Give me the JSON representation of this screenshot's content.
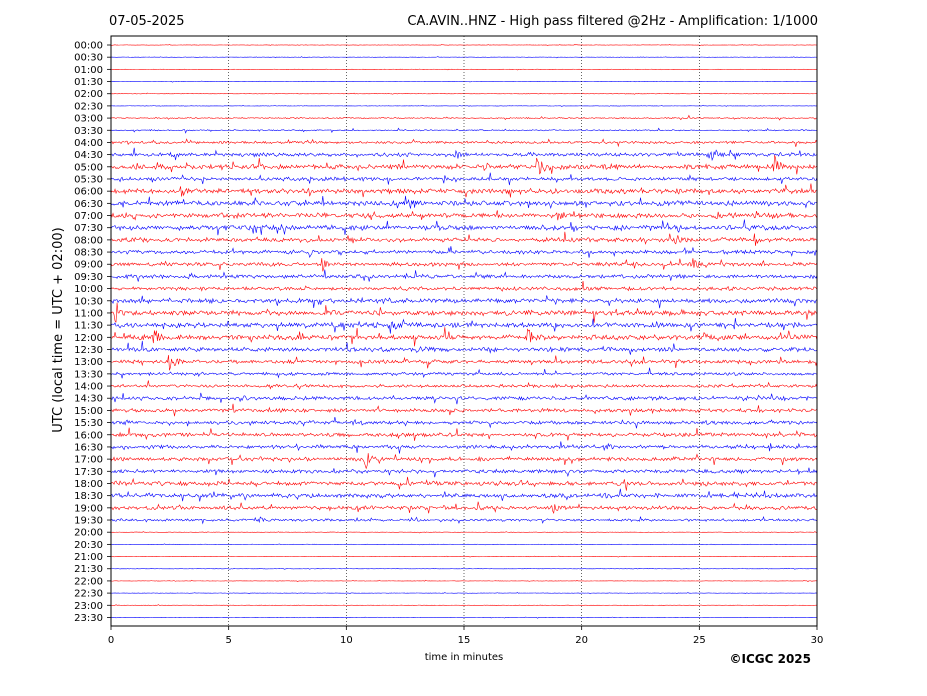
{
  "header": {
    "date": "07-05-2025",
    "title": "CA.AVIN..HNZ - High pass filtered @2Hz - Amplification: 1/1000"
  },
  "copyright": "©ICGC 2025",
  "colors": {
    "trace_a": "#ff0000",
    "trace_b": "#0000ff",
    "grid": "#000000"
  },
  "chart_data": {
    "type": "line",
    "xlabel": "time in minutes",
    "ylabel": "UTC (local time = UTC + 02:00)",
    "xlim": [
      0,
      30
    ],
    "x_ticks": [
      "0",
      "5",
      "10",
      "15",
      "20",
      "25",
      "30"
    ],
    "x_grid_minutes": [
      5,
      10,
      15,
      20,
      25
    ],
    "rows": [
      "00:00",
      "00:30",
      "01:00",
      "01:30",
      "02:00",
      "02:30",
      "03:00",
      "03:30",
      "04:00",
      "04:30",
      "05:00",
      "05:30",
      "06:00",
      "06:30",
      "07:00",
      "07:30",
      "08:00",
      "08:30",
      "09:00",
      "09:30",
      "10:00",
      "10:30",
      "11:00",
      "11:30",
      "12:00",
      "12:30",
      "13:00",
      "13:30",
      "14:00",
      "14:30",
      "15:00",
      "15:30",
      "16:00",
      "16:30",
      "17:00",
      "17:30",
      "18:00",
      "18:30",
      "19:00",
      "19:30",
      "20:00",
      "20:30",
      "21:00",
      "21:30",
      "22:00",
      "22:30",
      "23:00",
      "23:30"
    ],
    "noise_level": [
      0.03,
      0.03,
      0.03,
      0.03,
      0.03,
      0.03,
      0.1,
      0.1,
      0.2,
      0.3,
      0.4,
      0.3,
      0.4,
      0.4,
      0.4,
      0.4,
      0.35,
      0.3,
      0.3,
      0.3,
      0.3,
      0.35,
      0.4,
      0.4,
      0.4,
      0.35,
      0.3,
      0.25,
      0.25,
      0.3,
      0.3,
      0.3,
      0.3,
      0.3,
      0.3,
      0.3,
      0.35,
      0.35,
      0.3,
      0.2,
      0.04,
      0.03,
      0.03,
      0.03,
      0.03,
      0.03,
      0.03,
      0.03
    ],
    "events": [
      {
        "row": "04:30",
        "minute": 25.4,
        "amplitude": 2.5
      },
      {
        "row": "04:30",
        "minute": 14.6,
        "amplitude": 0.8
      },
      {
        "row": "05:00",
        "minute": 18.1,
        "amplitude": 1.8
      },
      {
        "row": "05:00",
        "minute": 28.2,
        "amplitude": 2.0
      },
      {
        "row": "05:00",
        "minute": 15.9,
        "amplitude": 0.7
      },
      {
        "row": "06:00",
        "minute": 3.0,
        "amplitude": 0.8
      },
      {
        "row": "06:30",
        "minute": 12.7,
        "amplitude": 0.9
      },
      {
        "row": "07:00",
        "minute": 19.0,
        "amplitude": 0.7
      },
      {
        "row": "07:00",
        "minute": 25.7,
        "amplitude": 0.7
      },
      {
        "row": "08:00",
        "minute": 24.0,
        "amplitude": 0.8
      },
      {
        "row": "09:00",
        "minute": 9.0,
        "amplitude": 0.9
      },
      {
        "row": "09:00",
        "minute": 24.8,
        "amplitude": 0.6
      },
      {
        "row": "09:30",
        "minute": 3.3,
        "amplitude": 0.6
      },
      {
        "row": "10:30",
        "minute": 11.7,
        "amplitude": 0.6
      },
      {
        "row": "11:00",
        "minute": 0.2,
        "amplitude": 2.0
      },
      {
        "row": "11:30",
        "minute": 11.9,
        "amplitude": 2.3
      },
      {
        "row": "11:30",
        "minute": 23.1,
        "amplitude": 0.6
      },
      {
        "row": "12:00",
        "minute": 1.8,
        "amplitude": 1.8
      },
      {
        "row": "12:00",
        "minute": 17.7,
        "amplitude": 1.6
      },
      {
        "row": "12:00",
        "minute": 25.2,
        "amplitude": 2.3
      },
      {
        "row": "12:00",
        "minute": 8.0,
        "amplitude": 0.7
      },
      {
        "row": "12:30",
        "minute": 13.0,
        "amplitude": 0.6
      },
      {
        "row": "13:00",
        "minute": 2.5,
        "amplitude": 2.1
      },
      {
        "row": "14:30",
        "minute": 5.5,
        "amplitude": 0.6
      },
      {
        "row": "15:30",
        "minute": 10.3,
        "amplitude": 0.7
      },
      {
        "row": "16:30",
        "minute": 21.0,
        "amplitude": 0.6
      },
      {
        "row": "17:00",
        "minute": 10.8,
        "amplitude": 1.9
      },
      {
        "row": "18:00",
        "minute": 17.3,
        "amplitude": 0.7
      },
      {
        "row": "19:00",
        "minute": 18.8,
        "amplitude": 0.6
      },
      {
        "row": "19:30",
        "minute": 6.2,
        "amplitude": 0.6
      }
    ]
  }
}
